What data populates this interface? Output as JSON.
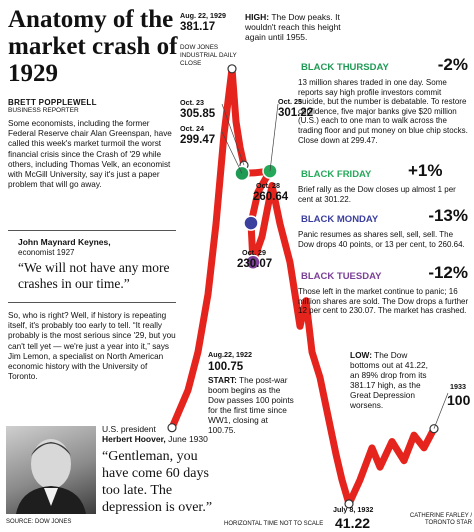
{
  "headline": "Anatomy of the market crash of 1929",
  "byline": {
    "name": "BRETT POPPLEWELL",
    "role": "BUSINESS REPORTER"
  },
  "intro": "Some economists, including the former Federal Reserve chair Alan Greenspan, have called this week's market turmoil the worst financial crisis since the Crash of '29 while others, including Thomas Velk, an economist with McGill University, say it's just a paper problem that will go away.",
  "keynes": {
    "name": "John Maynard Keynes,",
    "role": "economist 1927",
    "quote": "“We will not have any more crashes in our time.”"
  },
  "middle_text": "So, who is right? Well, if history is repeating itself, it's probably too early to tell. “It really probably is the most serious since '29, but you can't tell yet — we're just a year into it,” says Jim Lemon, a specialist on North American economic history with the University of Toronto.",
  "hoover": {
    "prefix": "U.S. president",
    "name": "Herbert Hoover,",
    "date": "June 1930",
    "quote": "“Gentleman, you have come 60 days too late. The depression is over.”"
  },
  "credits": {
    "left": "SOURCE: DOW JONES",
    "center": "HORIZONTAL TIME NOT TO SCALE",
    "right": "CATHERINE FARLEY / TORONTO STAR"
  },
  "series_label": "DOW JONES INDUSTRIAL DAILY CLOSE",
  "peak": {
    "date": "Aug. 22, 1929",
    "value": "381.17",
    "heading": "HIGH:",
    "text": "The Dow peaks. It wouldn't reach this height again until 1955."
  },
  "start": {
    "date": "Aug.22, 1922",
    "value": "100.75",
    "heading": "START:",
    "text": "The post-war boom begins as the Dow passes 100 points for the first time since WW1, closing at 100.75."
  },
  "low": {
    "date": "July 8, 1932",
    "value": "41.22",
    "heading": "LOW:",
    "text": "The Dow bottoms out at 41.22, an 89% drop from its 381.17 high, as the Great Depression worsens."
  },
  "end": {
    "date": "1933",
    "value": "100"
  },
  "points": {
    "oct23": {
      "date": "Oct. 23",
      "value": "305.85"
    },
    "oct24": {
      "date": "Oct. 24",
      "value": "299.47"
    },
    "oct25": {
      "date": "Oct. 25",
      "value": "301.22"
    },
    "oct28": {
      "date": "Oct. 28",
      "value": "260.64"
    },
    "oct29": {
      "date": "Oct. 29",
      "value": "230.07"
    }
  },
  "events": [
    {
      "name": "BLACK THURSDAY",
      "pct": "-2%",
      "color": "#1f9a55",
      "text": "13 million shares traded in one day. Some reports say high profile investors commit suicide, but the number is debatable. To restore confidence, five major banks give $20 million (U.S.) each to one man to walk across the trading floor and put money on blue chip stocks. Close down at 299.47."
    },
    {
      "name": "BLACK FRIDAY",
      "pct": "+1%",
      "color": "#26a85a",
      "text": "Brief rally as the Dow closes up almost 1 per cent at 301.22."
    },
    {
      "name": "BLACK MONDAY",
      "pct": "-13%",
      "color": "#3b3f9e",
      "text": "Panic resumes as shares sell, sell, sell. The Dow drops 40 points, or 13 per cent, to 260.64."
    },
    {
      "name": "BLACK TUESDAY",
      "pct": "-12%",
      "color": "#7b3f97",
      "text": "Those left in the market continue to panic; 16 million shares are sold. The Dow drops a further 12 per cent to 230.07. The market has crashed."
    }
  ],
  "colors": {
    "line": "#e4241d",
    "black_thursday": "#1f9a55",
    "black_friday": "#26a85a",
    "black_monday": "#3b3f9e",
    "black_tuesday": "#7b3f97"
  },
  "chart_data": {
    "type": "line",
    "title": "",
    "series_name": "DOW JONES INDUSTRIAL DAILY CLOSE",
    "x": [
      "Aug. 22, 1922",
      "Aug. 22, 1929",
      "Oct. 23",
      "Oct. 24",
      "Oct. 25",
      "Oct. 28",
      "Oct. 29",
      "July 8, 1932",
      "1933"
    ],
    "values": [
      100.75,
      381.17,
      305.85,
      299.47,
      301.22,
      260.64,
      230.07,
      41.22,
      100
    ],
    "xlabel": "HORIZONTAL TIME NOT TO SCALE",
    "ylabel": "",
    "ylim": [
      30,
      390
    ],
    "grid": false,
    "legend": "none"
  }
}
